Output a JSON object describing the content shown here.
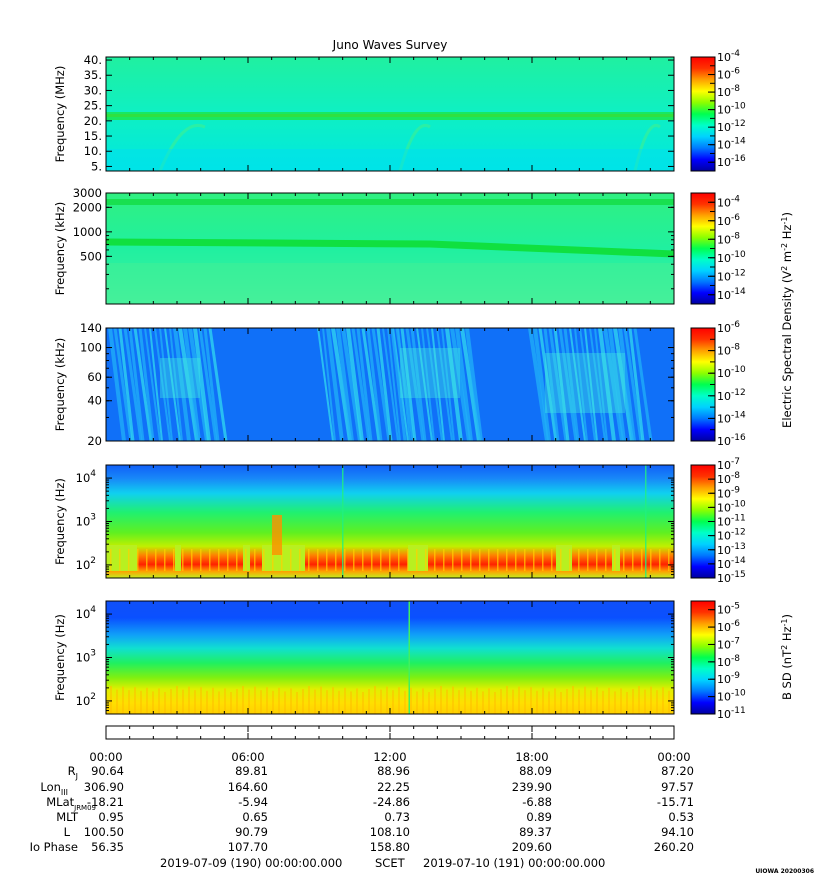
{
  "chart_data": {
    "type": "heatmap",
    "title": "Juno Waves Survey",
    "watermark": "UIOWA 20200306",
    "panels": [
      {
        "id": "mhz",
        "ylabel": "Frequency (MHz)",
        "yscale": "linear",
        "ylim": [
          3.5,
          41
        ],
        "yticks": [
          {
            "value": 40,
            "label": "40."
          },
          {
            "value": 35,
            "label": "35."
          },
          {
            "value": 30,
            "label": "30."
          },
          {
            "value": 25,
            "label": "25."
          },
          {
            "value": 20,
            "label": "20."
          },
          {
            "value": 15,
            "label": "15."
          },
          {
            "value": 10,
            "label": "10."
          },
          {
            "value": 5,
            "label": "5."
          }
        ],
        "colorbar": {
          "min_exp": -17,
          "max_exp": -4,
          "ticks": [
            {
              "exp": -4,
              "label": "10-4"
            },
            {
              "exp": -6,
              "label": "10-6"
            },
            {
              "exp": -8,
              "label": "10-8"
            },
            {
              "exp": -10,
              "label": "10-10"
            },
            {
              "exp": -12,
              "label": "10-12"
            },
            {
              "exp": -14,
              "label": "10-14"
            },
            {
              "exp": -16,
              "label": "10-16"
            }
          ]
        }
      },
      {
        "id": "khz_high",
        "ylabel": "Frequency (kHz)",
        "yscale": "log",
        "ylim": [
          130,
          3000
        ],
        "yticks": [
          {
            "value": 3000,
            "label": "3000"
          },
          {
            "value": 2000,
            "label": "2000"
          },
          {
            "value": 1000,
            "label": "1000"
          },
          {
            "value": 500,
            "label": "500"
          }
        ],
        "colorbar": {
          "min_exp": -15,
          "max_exp": -3,
          "ticks": [
            {
              "exp": -4,
              "label": "10-4"
            },
            {
              "exp": -6,
              "label": "10-6"
            },
            {
              "exp": -8,
              "label": "10-8"
            },
            {
              "exp": -10,
              "label": "10-10"
            },
            {
              "exp": -12,
              "label": "10-12"
            },
            {
              "exp": -14,
              "label": "10-14"
            }
          ]
        }
      },
      {
        "id": "khz_low",
        "ylabel": "Frequency (kHz)",
        "yscale": "log",
        "ylim": [
          20,
          140
        ],
        "yticks": [
          {
            "value": 140,
            "label": "140"
          },
          {
            "value": 100,
            "label": "100"
          },
          {
            "value": 60,
            "label": "60"
          },
          {
            "value": 40,
            "label": "40"
          },
          {
            "value": 20,
            "label": "20"
          }
        ],
        "colorbar": {
          "min_exp": -16,
          "max_exp": -6,
          "ticks": [
            {
              "exp": -6,
              "label": "10-6"
            },
            {
              "exp": -8,
              "label": "10-8"
            },
            {
              "exp": -10,
              "label": "10-10"
            },
            {
              "exp": -12,
              "label": "10-12"
            },
            {
              "exp": -14,
              "label": "10-14"
            },
            {
              "exp": -16,
              "label": "10-16"
            }
          ]
        }
      },
      {
        "id": "hz_e",
        "ylabel": "Frequency (Hz)",
        "yscale": "log",
        "ylim": [
          50,
          20000
        ],
        "yticks": [
          {
            "value": 10000,
            "label": "10",
            "sup": "4"
          },
          {
            "value": 1000,
            "label": "10",
            "sup": "3"
          },
          {
            "value": 100,
            "label": "10",
            "sup": "2"
          }
        ],
        "colorbar": {
          "min_exp": -15,
          "max_exp": -7,
          "ticks": [
            {
              "exp": -7,
              "label": "10-7"
            },
            {
              "exp": -8,
              "label": "10-8"
            },
            {
              "exp": -9,
              "label": "10-9"
            },
            {
              "exp": -10,
              "label": "10-10"
            },
            {
              "exp": -11,
              "label": "10-11"
            },
            {
              "exp": -12,
              "label": "10-12"
            },
            {
              "exp": -13,
              "label": "10-13"
            },
            {
              "exp": -14,
              "label": "10-14"
            },
            {
              "exp": -15,
              "label": "10-15"
            }
          ]
        }
      },
      {
        "id": "hz_b",
        "ylabel": "Frequency (Hz)",
        "yscale": "log",
        "ylim": [
          50,
          20000
        ],
        "yticks": [
          {
            "value": 10000,
            "label": "10",
            "sup": "4"
          },
          {
            "value": 1000,
            "label": "10",
            "sup": "3"
          },
          {
            "value": 100,
            "label": "10",
            "sup": "2"
          }
        ],
        "colorbar": {
          "min_exp": -11,
          "max_exp": -4.5,
          "ticks": [
            {
              "exp": -5,
              "label": "10-5"
            },
            {
              "exp": -6,
              "label": "10-6"
            },
            {
              "exp": -7,
              "label": "10-7"
            },
            {
              "exp": -8,
              "label": "10-8"
            },
            {
              "exp": -9,
              "label": "10-9"
            },
            {
              "exp": -10,
              "label": "10-10"
            },
            {
              "exp": -11,
              "label": "10-11"
            }
          ]
        }
      }
    ],
    "colorbar_labels": {
      "electric": "Electric Spectral Density (V2 m-2 Hz-1)",
      "magnetic": "B SD (nT2 Hz-1)"
    },
    "ephemeris": {
      "times": [
        "00:00",
        "06:00",
        "12:00",
        "18:00",
        "00:00"
      ],
      "rows": [
        {
          "label": "RJ",
          "values": [
            "90.64",
            "89.81",
            "88.96",
            "88.09",
            "87.20"
          ]
        },
        {
          "label": "LonIII",
          "values": [
            "306.90",
            "164.60",
            "22.25",
            "239.90",
            "97.57"
          ]
        },
        {
          "label": "MLatJRM09",
          "values": [
            "-18.21",
            "-5.94",
            "-24.86",
            "-6.88",
            "-15.71"
          ]
        },
        {
          "label": "MLT",
          "values": [
            "0.95",
            "0.65",
            "0.73",
            "0.89",
            "0.53"
          ]
        },
        {
          "label": "L",
          "values": [
            "100.50",
            "90.79",
            "108.10",
            "89.37",
            "94.10"
          ]
        },
        {
          "label": "Io Phase",
          "values": [
            "56.35",
            "107.70",
            "158.80",
            "209.60",
            "260.20"
          ]
        }
      ]
    },
    "time_range": {
      "start": "2019-07-09 (190) 00:00:00.000",
      "axis": "SCET",
      "end": "2019-07-10 (191) 00:00:00.000"
    }
  }
}
